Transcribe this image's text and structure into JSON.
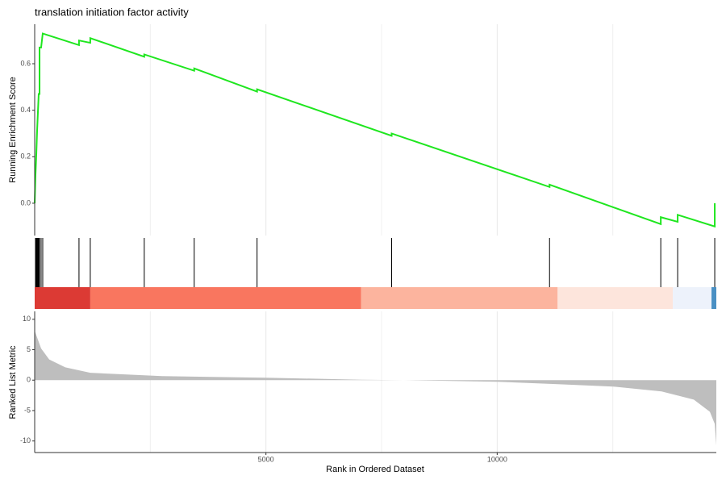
{
  "chart_data": {
    "type": "gsea",
    "title": "translation initiation factor activity",
    "x_label": "Rank in Ordered Dataset",
    "xlim": [
      0,
      14738
    ],
    "xticks": [
      5000,
      10000
    ],
    "minor_xticks": [
      2500,
      7500,
      12500
    ],
    "score": {
      "y_label": "Running Enrichment Score",
      "ylim": [
        -0.139,
        0.77
      ],
      "yticks": [
        {
          "value": 0,
          "label": "0.0"
        },
        0.2,
        0.4,
        0.6
      ],
      "color": "#1fe61f",
      "x": [
        0,
        17,
        35,
        52,
        87,
        105,
        105,
        139,
        174,
        958,
        958,
        1202,
        1202,
        2369,
        2369,
        3449,
        3449,
        4808,
        4808,
        7718,
        7718,
        11132,
        11132,
        13537,
        13537,
        13902,
        13902,
        14704,
        14704
      ],
      "values": [
        0,
        0.12,
        0.21,
        0.31,
        0.47,
        0.47,
        0.67,
        0.67,
        0.73,
        0.68,
        0.7,
        0.69,
        0.71,
        0.63,
        0.64,
        0.57,
        0.58,
        0.48,
        0.49,
        0.29,
        0.3,
        0.07,
        0.08,
        -0.09,
        -0.06,
        -0.08,
        -0.05,
        -0.1,
        0.0
      ]
    },
    "hits": [
      17,
      35,
      52,
      70,
      87,
      105,
      139,
      174,
      958,
      1202,
      2369,
      3449,
      4808,
      7718,
      11132,
      13537,
      13902,
      14704
    ],
    "heatmap": [
      {
        "start": 0,
        "end": 1202,
        "color": "#dc3a34"
      },
      {
        "start": 1202,
        "end": 7056,
        "color": "#f9765f"
      },
      {
        "start": 7056,
        "end": 11307,
        "color": "#fcb49e"
      },
      {
        "start": 11307,
        "end": 13798,
        "color": "#fde5dc"
      },
      {
        "start": 13798,
        "end": 14634,
        "color": "#edf2fb"
      },
      {
        "start": 14634,
        "end": 14738,
        "color": "#4a90c4"
      }
    ],
    "metric": {
      "y_label": "Ranked List Metric",
      "ylim": [
        -11.9,
        11.3
      ],
      "yticks": [
        10,
        5,
        0,
        -5,
        -10
      ],
      "color": "#bebebe",
      "x": [
        0,
        139,
        314,
        662,
        1202,
        2753,
        5000,
        7056,
        7979,
        10000,
        11307,
        12509,
        13554,
        14251,
        14599,
        14704,
        14738
      ],
      "values": [
        8.1,
        5.2,
        3.4,
        2.1,
        1.2,
        0.66,
        0.4,
        0.07,
        0,
        -0.26,
        -0.66,
        -1.06,
        -1.85,
        -3.2,
        -5.2,
        -7.2,
        -10.7
      ]
    }
  }
}
